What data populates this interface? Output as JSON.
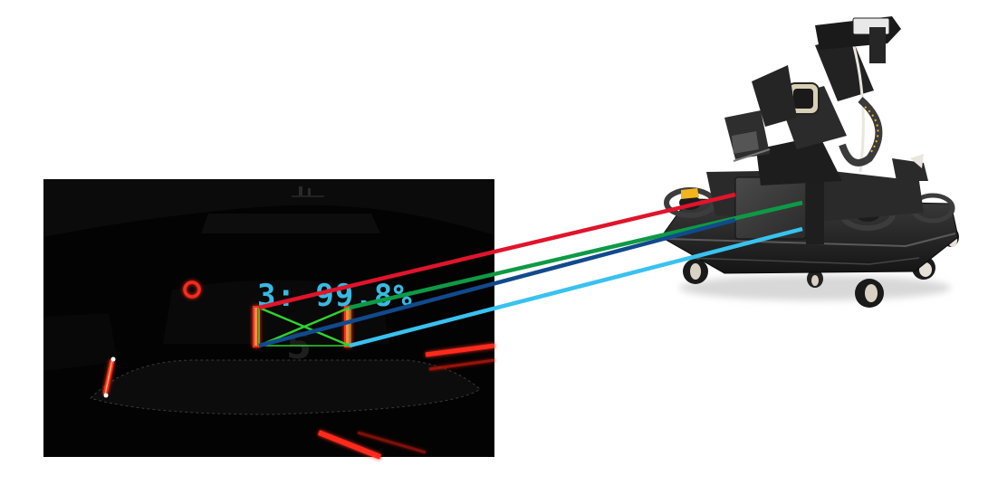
{
  "detection": {
    "label": "3: 99.8%",
    "label_color": "#39b9e0"
  },
  "colors": {
    "background": "#ffffff",
    "camera_bg": "#030303",
    "marker_glow": "#ff2a1a",
    "match_red": "#e0142b",
    "match_green": "#0e9a45",
    "match_dark_blue": "#114a8c",
    "match_light_blue": "#38c2ef",
    "cross_green": "#2fd22f"
  },
  "correspondences": [
    {
      "name": "match-line-red",
      "color": "#e0142b"
    },
    {
      "name": "match-line-green",
      "color": "#0e9a45"
    },
    {
      "name": "match-line-dark-blue",
      "color": "#114a8c"
    },
    {
      "name": "match-line-light-blue",
      "color": "#38c2ef"
    }
  ],
  "icons": {
    "camera_frame": "camera-frame-image",
    "robot": "mobile-manipulator-robot-image"
  }
}
